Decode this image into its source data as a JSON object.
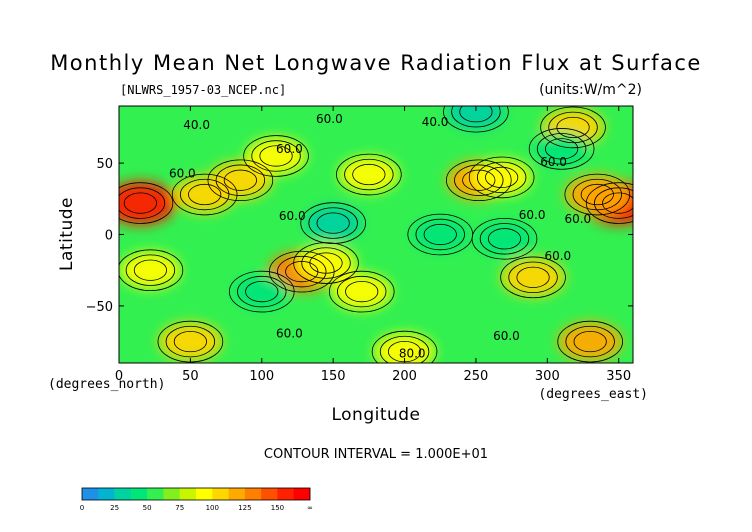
{
  "chart_data": {
    "type": "heatmap",
    "title": "Monthly Mean Net Longwave Radiation Flux at Surface",
    "source_file": "[NLWRS_1957-03_NCEP.nc]",
    "units": "(units:W/m^2)",
    "xlabel": "Longitude",
    "x_unit": "(degrees_east)",
    "ylabel": "Latitude",
    "y_unit": "(degrees_north)",
    "xlim": [
      0,
      360
    ],
    "ylim": [
      -90,
      90
    ],
    "x_ticks": [
      0,
      50,
      100,
      150,
      200,
      250,
      300,
      350
    ],
    "y_ticks": [
      50,
      0,
      -50
    ],
    "x_tick_labels": [
      "0",
      "50",
      "100",
      "150",
      "200",
      "250",
      "300",
      "350"
    ],
    "y_tick_labels": [
      "50",
      "0",
      "−50"
    ],
    "contour_interval_text": "CONTOUR INTERVAL = 1.000E+01",
    "contour_labels": [
      "40.0",
      "40.0",
      "60.0",
      "60.0",
      "60.0",
      "60.0",
      "60.0",
      "60.0",
      "60.0",
      "60.0",
      "60.0",
      "60.0",
      "80.0"
    ],
    "colorbar": {
      "tick_labels": [
        "0",
        "25",
        "50",
        "75",
        "100",
        "125",
        "150",
        "∞"
      ],
      "bins": [
        {
          "from": 0,
          "to": 12.5,
          "color": "#1e90e6"
        },
        {
          "from": 12.5,
          "to": 25,
          "color": "#00b4d2"
        },
        {
          "from": 25,
          "to": 37.5,
          "color": "#00d2a0"
        },
        {
          "from": 37.5,
          "to": 50,
          "color": "#00e678"
        },
        {
          "from": 50,
          "to": 62.5,
          "color": "#32f050"
        },
        {
          "from": 62.5,
          "to": 75,
          "color": "#82f01e"
        },
        {
          "from": 75,
          "to": 87.5,
          "color": "#c8f500"
        },
        {
          "from": 87.5,
          "to": 100,
          "color": "#ffff00"
        },
        {
          "from": 100,
          "to": 112.5,
          "color": "#ffd700"
        },
        {
          "from": 112.5,
          "to": 125,
          "color": "#ffaa00"
        },
        {
          "from": 125,
          "to": 137.5,
          "color": "#ff8000"
        },
        {
          "from": 137.5,
          "to": 150,
          "color": "#ff5000"
        },
        {
          "from": 150,
          "to": 162.5,
          "color": "#ff2000"
        },
        {
          "from": 162.5,
          "to": 175,
          "color": "#ff0000"
        }
      ]
    },
    "field_features": [
      {
        "lon": 15,
        "lat": 22,
        "value": 150
      },
      {
        "lon": 60,
        "lat": 28,
        "value": 100
      },
      {
        "lon": 85,
        "lat": 38,
        "value": 110
      },
      {
        "lon": 110,
        "lat": 55,
        "value": 95
      },
      {
        "lon": 175,
        "lat": 42,
        "value": 92
      },
      {
        "lon": 252,
        "lat": 38,
        "value": 118
      },
      {
        "lon": 268,
        "lat": 40,
        "value": 95
      },
      {
        "lon": 350,
        "lat": 22,
        "value": 150
      },
      {
        "lon": 335,
        "lat": 28,
        "value": 120
      },
      {
        "lon": 318,
        "lat": 75,
        "value": 105
      },
      {
        "lon": 128,
        "lat": -26,
        "value": 130
      },
      {
        "lon": 145,
        "lat": -20,
        "value": 95
      },
      {
        "lon": 290,
        "lat": -30,
        "value": 112
      },
      {
        "lon": 22,
        "lat": -25,
        "value": 95
      },
      {
        "lon": 170,
        "lat": -40,
        "value": 92
      },
      {
        "lon": 150,
        "lat": 8,
        "value": 35
      },
      {
        "lon": 225,
        "lat": 0,
        "value": 40
      },
      {
        "lon": 270,
        "lat": -3,
        "value": 38
      },
      {
        "lon": 100,
        "lat": -40,
        "value": 40
      },
      {
        "lon": 310,
        "lat": 60,
        "value": 40
      },
      {
        "lon": 250,
        "lat": 86,
        "value": 30
      },
      {
        "lon": 50,
        "lat": -75,
        "value": 110
      },
      {
        "lon": 330,
        "lat": -75,
        "value": 115
      },
      {
        "lon": 200,
        "lat": -82,
        "value": 95
      }
    ]
  }
}
